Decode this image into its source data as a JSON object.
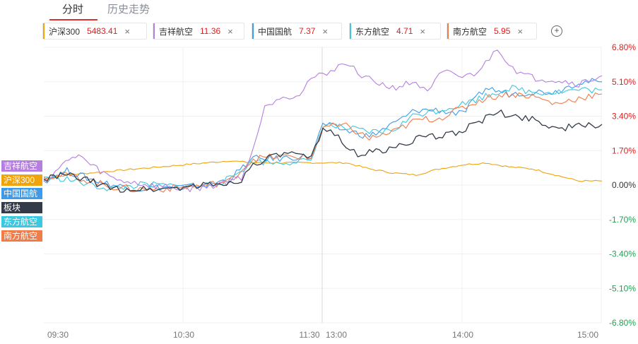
{
  "tabs": [
    {
      "label": "分时",
      "active": true
    },
    {
      "label": "历史走势",
      "active": false
    }
  ],
  "chips": [
    {
      "name": "沪深300",
      "value": "5483.41",
      "color": "#f0a30a"
    },
    {
      "name": "吉祥航空",
      "value": "11.36",
      "color": "#b57fe0"
    },
    {
      "name": "中国国航",
      "value": "7.37",
      "color": "#3d9be9"
    },
    {
      "name": "东方航空",
      "value": "4.71",
      "color": "#3cc8e0"
    },
    {
      "name": "南方航空",
      "value": "5.95",
      "color": "#f07c4a"
    }
  ],
  "chip_close_icon": "×",
  "add_icon": "+",
  "left_legend": [
    {
      "label": "吉祥航空",
      "color": "#b57fe0"
    },
    {
      "label": "沪深300",
      "color": "#f0a30a"
    },
    {
      "label": "中国国航",
      "color": "#3d9be9"
    },
    {
      "label": "板块",
      "color": "#333a48"
    },
    {
      "label": "东方航空",
      "color": "#3cc8e0"
    },
    {
      "label": "南方航空",
      "color": "#f07c4a"
    }
  ],
  "chart_data": {
    "type": "line",
    "x_ticks": [
      "09:30",
      "10:30",
      "11:30",
      "13:00",
      "14:00",
      "15:00"
    ],
    "y_ticks": [
      "6.80%",
      "5.10%",
      "3.40%",
      "1.70%",
      "0.00%",
      "-1.70%",
      "-3.40%",
      "-5.10%",
      "-6.80%"
    ],
    "ylim": [
      -6.8,
      6.8
    ],
    "positive_color": "#e02020",
    "negative_color": "#22a053",
    "x_index_range": [
      0,
      240
    ],
    "series": [
      {
        "name": "吉祥航空",
        "color": "#b57fe0",
        "points": [
          [
            0,
            0.2
          ],
          [
            8,
            1.0
          ],
          [
            15,
            1.5
          ],
          [
            20,
            1.0
          ],
          [
            30,
            0.3
          ],
          [
            45,
            0.0
          ],
          [
            60,
            -0.2
          ],
          [
            70,
            -0.1
          ],
          [
            80,
            0.2
          ],
          [
            85,
            0.4
          ],
          [
            90,
            1.8
          ],
          [
            95,
            3.8
          ],
          [
            100,
            4.3
          ],
          [
            110,
            4.5
          ],
          [
            115,
            5.3
          ],
          [
            120,
            5.4
          ],
          [
            125,
            5.8
          ],
          [
            130,
            6.0
          ],
          [
            135,
            5.6
          ],
          [
            140,
            5.2
          ],
          [
            150,
            4.8
          ],
          [
            160,
            5.1
          ],
          [
            165,
            4.5
          ],
          [
            170,
            5.4
          ],
          [
            175,
            5.6
          ],
          [
            180,
            5.3
          ],
          [
            185,
            5.5
          ],
          [
            190,
            6.0
          ],
          [
            195,
            6.8
          ],
          [
            200,
            6.0
          ],
          [
            205,
            5.5
          ],
          [
            210,
            5.3
          ],
          [
            220,
            5.2
          ],
          [
            230,
            5.0
          ],
          [
            240,
            5.4
          ]
        ]
      },
      {
        "name": "沪深300",
        "color": "#f0a30a",
        "points": [
          [
            0,
            0.3
          ],
          [
            10,
            0.5
          ],
          [
            20,
            0.6
          ],
          [
            30,
            0.7
          ],
          [
            40,
            0.8
          ],
          [
            50,
            0.9
          ],
          [
            60,
            1.0
          ],
          [
            70,
            1.1
          ],
          [
            80,
            1.2
          ],
          [
            90,
            1.1
          ],
          [
            100,
            1.1
          ],
          [
            110,
            1.1
          ],
          [
            120,
            1.1
          ],
          [
            130,
            1.1
          ],
          [
            140,
            0.8
          ],
          [
            150,
            0.6
          ],
          [
            160,
            0.5
          ],
          [
            170,
            0.8
          ],
          [
            180,
            1.0
          ],
          [
            190,
            1.1
          ],
          [
            200,
            0.9
          ],
          [
            210,
            0.8
          ],
          [
            220,
            0.5
          ],
          [
            230,
            0.2
          ],
          [
            240,
            0.2
          ]
        ]
      },
      {
        "name": "中国国航",
        "color": "#3d9be9",
        "points": [
          [
            0,
            0.2
          ],
          [
            10,
            0.7
          ],
          [
            20,
            0.3
          ],
          [
            30,
            0.0
          ],
          [
            40,
            -0.2
          ],
          [
            50,
            -0.1
          ],
          [
            60,
            -0.1
          ],
          [
            70,
            0.0
          ],
          [
            80,
            0.3
          ],
          [
            90,
            1.3
          ],
          [
            100,
            1.3
          ],
          [
            110,
            1.4
          ],
          [
            115,
            1.4
          ],
          [
            120,
            3.0
          ],
          [
            130,
            2.7
          ],
          [
            140,
            2.4
          ],
          [
            150,
            3.0
          ],
          [
            160,
            3.7
          ],
          [
            170,
            3.7
          ],
          [
            180,
            3.5
          ],
          [
            190,
            4.8
          ],
          [
            200,
            4.5
          ],
          [
            210,
            4.6
          ],
          [
            220,
            4.6
          ],
          [
            230,
            5.1
          ],
          [
            240,
            5.1
          ]
        ]
      },
      {
        "name": "板块",
        "color": "#333a48",
        "points": [
          [
            0,
            0.3
          ],
          [
            10,
            0.5
          ],
          [
            20,
            0.2
          ],
          [
            30,
            -0.2
          ],
          [
            40,
            -0.2
          ],
          [
            50,
            -0.2
          ],
          [
            60,
            -0.1
          ],
          [
            70,
            0.0
          ],
          [
            80,
            0.1
          ],
          [
            85,
            0.3
          ],
          [
            90,
            1.0
          ],
          [
            95,
            1.3
          ],
          [
            100,
            1.4
          ],
          [
            105,
            1.6
          ],
          [
            110,
            1.4
          ],
          [
            115,
            1.3
          ],
          [
            120,
            2.7
          ],
          [
            125,
            2.6
          ],
          [
            130,
            2.0
          ],
          [
            135,
            1.5
          ],
          [
            140,
            1.6
          ],
          [
            150,
            1.8
          ],
          [
            160,
            2.3
          ],
          [
            170,
            2.4
          ],
          [
            180,
            2.7
          ],
          [
            190,
            3.3
          ],
          [
            195,
            3.6
          ],
          [
            200,
            3.4
          ],
          [
            210,
            3.3
          ],
          [
            220,
            2.8
          ],
          [
            230,
            2.9
          ],
          [
            240,
            3.0
          ]
        ]
      },
      {
        "name": "东方航空",
        "color": "#3cc8e0",
        "points": [
          [
            0,
            0.4
          ],
          [
            10,
            0.3
          ],
          [
            20,
            0.0
          ],
          [
            30,
            -0.2
          ],
          [
            40,
            0.0
          ],
          [
            50,
            0.0
          ],
          [
            60,
            -0.1
          ],
          [
            70,
            0.0
          ],
          [
            80,
            0.3
          ],
          [
            90,
            1.2
          ],
          [
            100,
            1.1
          ],
          [
            110,
            1.2
          ],
          [
            115,
            1.1
          ],
          [
            120,
            3.0
          ],
          [
            130,
            2.8
          ],
          [
            140,
            2.6
          ],
          [
            150,
            2.7
          ],
          [
            160,
            3.5
          ],
          [
            170,
            3.7
          ],
          [
            180,
            4.0
          ],
          [
            190,
            4.4
          ],
          [
            200,
            4.8
          ],
          [
            210,
            4.6
          ],
          [
            220,
            4.6
          ],
          [
            230,
            4.7
          ],
          [
            240,
            4.7
          ]
        ]
      },
      {
        "name": "南方航空",
        "color": "#f07c4a",
        "points": [
          [
            0,
            0.4
          ],
          [
            10,
            0.5
          ],
          [
            20,
            0.2
          ],
          [
            30,
            -0.1
          ],
          [
            40,
            -0.2
          ],
          [
            50,
            -0.2
          ],
          [
            60,
            -0.1
          ],
          [
            70,
            0.0
          ],
          [
            80,
            0.2
          ],
          [
            90,
            1.3
          ],
          [
            100,
            1.4
          ],
          [
            110,
            1.4
          ],
          [
            115,
            1.3
          ],
          [
            120,
            2.9
          ],
          [
            130,
            2.9
          ],
          [
            140,
            2.3
          ],
          [
            150,
            2.6
          ],
          [
            160,
            3.2
          ],
          [
            170,
            3.3
          ],
          [
            180,
            3.8
          ],
          [
            190,
            4.3
          ],
          [
            200,
            4.5
          ],
          [
            210,
            4.4
          ],
          [
            220,
            4.0
          ],
          [
            230,
            4.3
          ],
          [
            240,
            4.5
          ]
        ]
      }
    ]
  }
}
